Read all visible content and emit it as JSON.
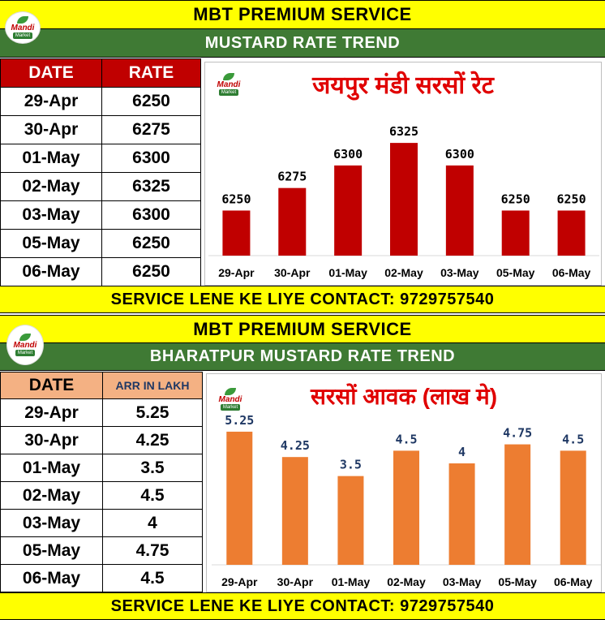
{
  "panel1": {
    "header": "MBT PREMIUM SERVICE",
    "subheader": "MUSTARD RATE TREND",
    "logo": {
      "line1": "Mandi",
      "line2": "Market"
    },
    "table": {
      "headers": [
        "DATE",
        "RATE"
      ],
      "rows": [
        [
          "29-Apr",
          "6250"
        ],
        [
          "30-Apr",
          "6275"
        ],
        [
          "01-May",
          "6300"
        ],
        [
          "02-May",
          "6325"
        ],
        [
          "03-May",
          "6300"
        ],
        [
          "05-May",
          "6250"
        ],
        [
          "06-May",
          "6250"
        ]
      ]
    },
    "footer": "SERVICE LENE KE LIYE CONTACT: 9729757540"
  },
  "panel2": {
    "header": "MBT PREMIUM SERVICE",
    "subheader": "BHARATPUR MUSTARD RATE TREND",
    "logo": {
      "line1": "Mandi",
      "line2": "Market"
    },
    "table": {
      "headers": [
        "DATE",
        "ARR IN LAKH"
      ],
      "rows": [
        [
          "29-Apr",
          "5.25"
        ],
        [
          "30-Apr",
          "4.25"
        ],
        [
          "01-May",
          "3.5"
        ],
        [
          "02-May",
          "4.5"
        ],
        [
          "03-May",
          "4"
        ],
        [
          "05-May",
          "4.75"
        ],
        [
          "06-May",
          "4.5"
        ]
      ]
    },
    "footer": "SERVICE LENE KE LIYE CONTACT: 9729757540"
  },
  "colors": {
    "yellow": "#ffff00",
    "green": "#3f7a34",
    "header_red": "#c00000",
    "header_peach": "#f4b183",
    "bar_red": "#c00000",
    "bar_orange": "#ed7d31"
  },
  "chart_data": [
    {
      "type": "bar",
      "title": "जयपुर मंडी सरसों रेट",
      "categories": [
        "29-Apr",
        "30-Apr",
        "01-May",
        "02-May",
        "03-May",
        "05-May",
        "06-May"
      ],
      "values": [
        6250,
        6275,
        6300,
        6325,
        6300,
        6250,
        6250
      ],
      "ylim": [
        6200,
        6335
      ],
      "data_labels": true,
      "grid": false,
      "color": "#c00000"
    },
    {
      "type": "bar",
      "title": "सरसों आवक (लाख मे)",
      "categories": [
        "29-Apr",
        "30-Apr",
        "01-May",
        "02-May",
        "03-May",
        "05-May",
        "06-May"
      ],
      "values": [
        5.25,
        4.25,
        3.5,
        4.5,
        4,
        4.75,
        4.5
      ],
      "ylim": [
        0,
        5.6
      ],
      "data_labels": true,
      "grid": false,
      "color": "#ed7d31"
    }
  ]
}
